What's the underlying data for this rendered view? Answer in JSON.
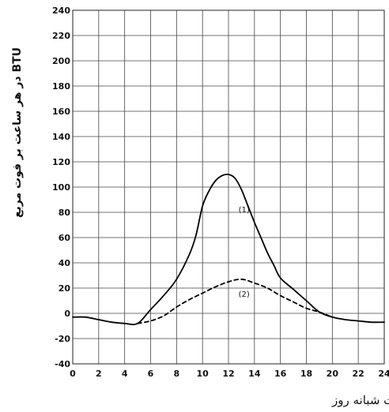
{
  "chart_data": {
    "type": "line",
    "title": "",
    "xlabel": "ساعات شبانه روز",
    "ylabel": "BTU در هر ساعت بر فوت مربع",
    "xlim": [
      0,
      24
    ],
    "ylim": [
      -40,
      240
    ],
    "x_ticks": [
      0,
      2,
      4,
      6,
      8,
      10,
      12,
      14,
      16,
      18,
      20,
      22,
      24
    ],
    "y_ticks": [
      -40,
      -20,
      0,
      20,
      40,
      60,
      80,
      100,
      120,
      140,
      160,
      180,
      200,
      220,
      240
    ],
    "grid": true,
    "series": [
      {
        "name": "(1)",
        "style": "solid",
        "x": [
          0,
          1,
          2,
          3,
          4,
          5,
          6,
          7,
          8,
          9,
          9.5,
          10,
          10.5,
          11,
          11.5,
          12,
          12.5,
          13,
          13.5,
          14,
          14.5,
          15,
          15.5,
          16,
          17,
          18,
          19,
          20,
          21,
          22,
          23,
          24
        ],
        "y": [
          -3,
          -3,
          -5,
          -7,
          -8,
          -8,
          3,
          14,
          27,
          47,
          62,
          85,
          97,
          105,
          109,
          110,
          107,
          98,
          85,
          72,
          60,
          48,
          38,
          28,
          19,
          10,
          1,
          -3,
          -5,
          -6,
          -7,
          -7
        ]
      },
      {
        "name": "(2)",
        "style": "dashed",
        "x": [
          5,
          6,
          7,
          8,
          9,
          10,
          11,
          12,
          13,
          14,
          15,
          16,
          17,
          18,
          19,
          20
        ],
        "y": [
          -8,
          -6,
          -2,
          5,
          11,
          16,
          21,
          25,
          27,
          24,
          20,
          14,
          9,
          4,
          1,
          -3
        ]
      }
    ],
    "annotations": [
      {
        "text": "(1)",
        "x": 13.2,
        "y": 80
      },
      {
        "text": "(2)",
        "x": 13.2,
        "y": 13
      }
    ]
  }
}
